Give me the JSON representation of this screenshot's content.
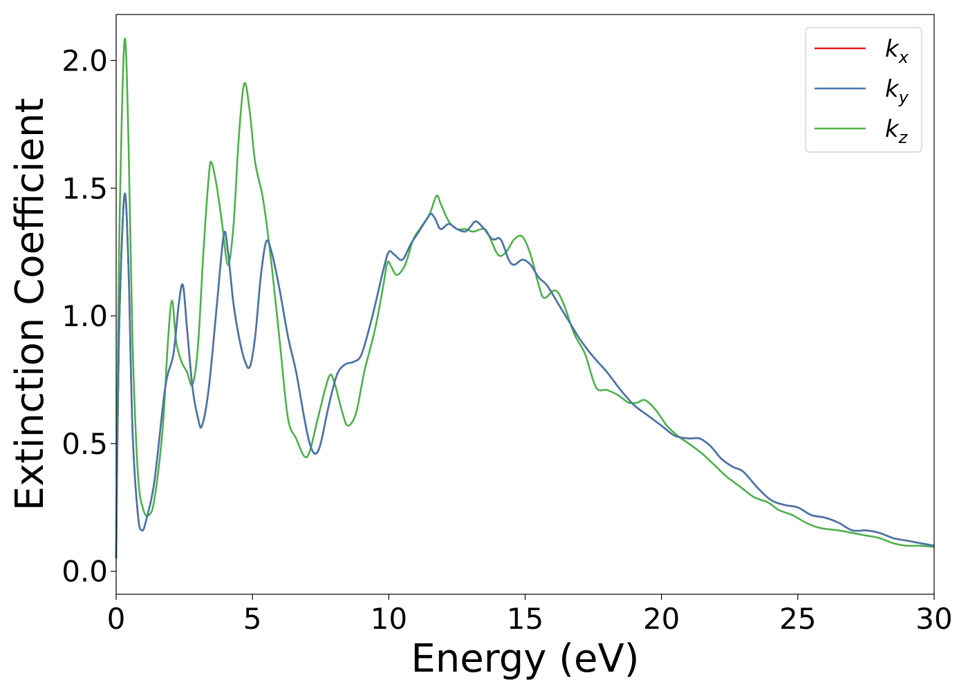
{
  "chart_data": {
    "type": "line",
    "xlabel": "Energy (eV)",
    "ylabel": "Extinction Coefficient",
    "xlim": [
      0,
      30
    ],
    "ylim": [
      -0.09,
      2.18
    ],
    "xticks": [
      0,
      5,
      10,
      15,
      20,
      25,
      30
    ],
    "xtick_labels": [
      "0",
      "5",
      "10",
      "15",
      "20",
      "25",
      "30"
    ],
    "yticks": [
      0.0,
      0.5,
      1.0,
      1.5,
      2.0
    ],
    "ytick_labels": [
      "0.0",
      "0.5",
      "1.0",
      "1.5",
      "2.0"
    ],
    "grid": false,
    "legend_position": "top-right",
    "series": [
      {
        "name": "k_x",
        "legend_base": "k",
        "legend_sub": "x",
        "color": "#e41a1c",
        "points": [
          [
            0,
            0.05
          ],
          [
            0.1,
            0.9
          ],
          [
            0.3,
            1.47
          ],
          [
            0.45,
            1.2
          ],
          [
            0.6,
            0.55
          ],
          [
            0.8,
            0.22
          ],
          [
            0.95,
            0.16
          ],
          [
            1.1,
            0.2
          ],
          [
            1.4,
            0.35
          ],
          [
            1.8,
            0.72
          ],
          [
            2.1,
            0.85
          ],
          [
            2.3,
            1.05
          ],
          [
            2.45,
            1.12
          ],
          [
            2.6,
            0.95
          ],
          [
            2.8,
            0.72
          ],
          [
            3.0,
            0.6
          ],
          [
            3.15,
            0.57
          ],
          [
            3.4,
            0.72
          ],
          [
            3.7,
            1.05
          ],
          [
            3.95,
            1.32
          ],
          [
            4.1,
            1.25
          ],
          [
            4.3,
            1.05
          ],
          [
            4.5,
            0.92
          ],
          [
            4.7,
            0.83
          ],
          [
            4.9,
            0.8
          ],
          [
            5.1,
            0.92
          ],
          [
            5.3,
            1.15
          ],
          [
            5.5,
            1.29
          ],
          [
            5.7,
            1.25
          ],
          [
            6.0,
            1.1
          ],
          [
            6.3,
            0.92
          ],
          [
            6.6,
            0.78
          ],
          [
            6.9,
            0.6
          ],
          [
            7.1,
            0.5
          ],
          [
            7.3,
            0.46
          ],
          [
            7.5,
            0.5
          ],
          [
            7.8,
            0.65
          ],
          [
            8.1,
            0.77
          ],
          [
            8.4,
            0.81
          ],
          [
            8.7,
            0.82
          ],
          [
            9.0,
            0.85
          ],
          [
            9.4,
            1.0
          ],
          [
            9.8,
            1.18
          ],
          [
            10.0,
            1.25
          ],
          [
            10.2,
            1.24
          ],
          [
            10.5,
            1.22
          ],
          [
            10.8,
            1.28
          ],
          [
            11.1,
            1.33
          ],
          [
            11.4,
            1.38
          ],
          [
            11.55,
            1.4
          ],
          [
            11.7,
            1.38
          ],
          [
            11.9,
            1.34
          ],
          [
            12.2,
            1.36
          ],
          [
            12.5,
            1.34
          ],
          [
            12.8,
            1.33
          ],
          [
            13.0,
            1.35
          ],
          [
            13.2,
            1.37
          ],
          [
            13.5,
            1.34
          ],
          [
            13.8,
            1.3
          ],
          [
            14.1,
            1.3
          ],
          [
            14.4,
            1.22
          ],
          [
            14.6,
            1.2
          ],
          [
            14.9,
            1.22
          ],
          [
            15.2,
            1.2
          ],
          [
            15.5,
            1.15
          ],
          [
            15.8,
            1.12
          ],
          [
            16.2,
            1.05
          ],
          [
            16.6,
            0.98
          ],
          [
            17.0,
            0.91
          ],
          [
            17.5,
            0.84
          ],
          [
            18.0,
            0.78
          ],
          [
            18.5,
            0.71
          ],
          [
            19.0,
            0.65
          ],
          [
            19.5,
            0.61
          ],
          [
            20.0,
            0.57
          ],
          [
            20.5,
            0.53
          ],
          [
            21.0,
            0.52
          ],
          [
            21.4,
            0.52
          ],
          [
            21.8,
            0.49
          ],
          [
            22.2,
            0.44
          ],
          [
            22.6,
            0.41
          ],
          [
            23.0,
            0.39
          ],
          [
            23.5,
            0.33
          ],
          [
            24.0,
            0.28
          ],
          [
            24.5,
            0.26
          ],
          [
            25.0,
            0.25
          ],
          [
            25.5,
            0.22
          ],
          [
            26.0,
            0.21
          ],
          [
            26.5,
            0.19
          ],
          [
            27.0,
            0.16
          ],
          [
            27.5,
            0.16
          ],
          [
            28.0,
            0.15
          ],
          [
            28.5,
            0.13
          ],
          [
            29.0,
            0.12
          ],
          [
            29.5,
            0.11
          ],
          [
            30.0,
            0.1
          ]
        ]
      },
      {
        "name": "k_y",
        "legend_base": "k",
        "legend_sub": "y",
        "color": "#4477aa",
        "points": [
          [
            0,
            0.05
          ],
          [
            0.1,
            0.9
          ],
          [
            0.3,
            1.47
          ],
          [
            0.45,
            1.2
          ],
          [
            0.6,
            0.55
          ],
          [
            0.8,
            0.22
          ],
          [
            0.95,
            0.16
          ],
          [
            1.1,
            0.2
          ],
          [
            1.4,
            0.35
          ],
          [
            1.8,
            0.72
          ],
          [
            2.1,
            0.85
          ],
          [
            2.3,
            1.05
          ],
          [
            2.45,
            1.12
          ],
          [
            2.6,
            0.95
          ],
          [
            2.8,
            0.72
          ],
          [
            3.0,
            0.6
          ],
          [
            3.15,
            0.57
          ],
          [
            3.4,
            0.72
          ],
          [
            3.7,
            1.05
          ],
          [
            3.95,
            1.32
          ],
          [
            4.1,
            1.25
          ],
          [
            4.3,
            1.05
          ],
          [
            4.5,
            0.92
          ],
          [
            4.7,
            0.83
          ],
          [
            4.9,
            0.8
          ],
          [
            5.1,
            0.92
          ],
          [
            5.3,
            1.15
          ],
          [
            5.5,
            1.29
          ],
          [
            5.7,
            1.25
          ],
          [
            6.0,
            1.1
          ],
          [
            6.3,
            0.92
          ],
          [
            6.6,
            0.78
          ],
          [
            6.9,
            0.6
          ],
          [
            7.1,
            0.5
          ],
          [
            7.3,
            0.46
          ],
          [
            7.5,
            0.5
          ],
          [
            7.8,
            0.65
          ],
          [
            8.1,
            0.77
          ],
          [
            8.4,
            0.81
          ],
          [
            8.7,
            0.82
          ],
          [
            9.0,
            0.85
          ],
          [
            9.4,
            1.0
          ],
          [
            9.8,
            1.18
          ],
          [
            10.0,
            1.25
          ],
          [
            10.2,
            1.24
          ],
          [
            10.5,
            1.22
          ],
          [
            10.8,
            1.28
          ],
          [
            11.1,
            1.33
          ],
          [
            11.4,
            1.38
          ],
          [
            11.55,
            1.4
          ],
          [
            11.7,
            1.38
          ],
          [
            11.9,
            1.34
          ],
          [
            12.2,
            1.36
          ],
          [
            12.5,
            1.34
          ],
          [
            12.8,
            1.33
          ],
          [
            13.0,
            1.35
          ],
          [
            13.2,
            1.37
          ],
          [
            13.5,
            1.34
          ],
          [
            13.8,
            1.3
          ],
          [
            14.1,
            1.3
          ],
          [
            14.4,
            1.22
          ],
          [
            14.6,
            1.2
          ],
          [
            14.9,
            1.22
          ],
          [
            15.2,
            1.2
          ],
          [
            15.5,
            1.15
          ],
          [
            15.8,
            1.12
          ],
          [
            16.2,
            1.05
          ],
          [
            16.6,
            0.98
          ],
          [
            17.0,
            0.91
          ],
          [
            17.5,
            0.84
          ],
          [
            18.0,
            0.78
          ],
          [
            18.5,
            0.71
          ],
          [
            19.0,
            0.65
          ],
          [
            19.5,
            0.61
          ],
          [
            20.0,
            0.57
          ],
          [
            20.5,
            0.53
          ],
          [
            21.0,
            0.52
          ],
          [
            21.4,
            0.52
          ],
          [
            21.8,
            0.49
          ],
          [
            22.2,
            0.44
          ],
          [
            22.6,
            0.41
          ],
          [
            23.0,
            0.39
          ],
          [
            23.5,
            0.33
          ],
          [
            24.0,
            0.28
          ],
          [
            24.5,
            0.26
          ],
          [
            25.0,
            0.25
          ],
          [
            25.5,
            0.22
          ],
          [
            26.0,
            0.21
          ],
          [
            26.5,
            0.19
          ],
          [
            27.0,
            0.16
          ],
          [
            27.5,
            0.16
          ],
          [
            28.0,
            0.15
          ],
          [
            28.5,
            0.13
          ],
          [
            29.0,
            0.12
          ],
          [
            29.5,
            0.11
          ],
          [
            30.0,
            0.1
          ]
        ]
      },
      {
        "name": "k_z",
        "legend_base": "k",
        "legend_sub": "z",
        "color": "#4daf4a",
        "points": [
          [
            0,
            0.05
          ],
          [
            0.1,
            1.2
          ],
          [
            0.3,
            2.07
          ],
          [
            0.45,
            1.7
          ],
          [
            0.6,
            0.9
          ],
          [
            0.8,
            0.38
          ],
          [
            1.0,
            0.24
          ],
          [
            1.2,
            0.22
          ],
          [
            1.4,
            0.28
          ],
          [
            1.7,
            0.55
          ],
          [
            1.9,
            0.9
          ],
          [
            2.05,
            1.06
          ],
          [
            2.2,
            0.9
          ],
          [
            2.4,
            0.82
          ],
          [
            2.6,
            0.78
          ],
          [
            2.8,
            0.73
          ],
          [
            3.0,
            0.88
          ],
          [
            3.2,
            1.25
          ],
          [
            3.4,
            1.55
          ],
          [
            3.5,
            1.6
          ],
          [
            3.7,
            1.5
          ],
          [
            3.9,
            1.35
          ],
          [
            4.1,
            1.2
          ],
          [
            4.3,
            1.35
          ],
          [
            4.5,
            1.7
          ],
          [
            4.7,
            1.91
          ],
          [
            4.9,
            1.8
          ],
          [
            5.1,
            1.6
          ],
          [
            5.4,
            1.45
          ],
          [
            5.7,
            1.2
          ],
          [
            6.0,
            0.9
          ],
          [
            6.3,
            0.6
          ],
          [
            6.6,
            0.52
          ],
          [
            6.9,
            0.45
          ],
          [
            7.1,
            0.47
          ],
          [
            7.4,
            0.6
          ],
          [
            7.8,
            0.76
          ],
          [
            8.0,
            0.74
          ],
          [
            8.3,
            0.62
          ],
          [
            8.5,
            0.57
          ],
          [
            8.8,
            0.62
          ],
          [
            9.1,
            0.78
          ],
          [
            9.5,
            0.95
          ],
          [
            9.8,
            1.12
          ],
          [
            9.95,
            1.21
          ],
          [
            10.1,
            1.19
          ],
          [
            10.3,
            1.16
          ],
          [
            10.6,
            1.2
          ],
          [
            10.9,
            1.3
          ],
          [
            11.2,
            1.35
          ],
          [
            11.5,
            1.4
          ],
          [
            11.75,
            1.47
          ],
          [
            11.9,
            1.44
          ],
          [
            12.2,
            1.37
          ],
          [
            12.5,
            1.34
          ],
          [
            12.8,
            1.34
          ],
          [
            13.1,
            1.33
          ],
          [
            13.4,
            1.34
          ],
          [
            13.6,
            1.33
          ],
          [
            14.0,
            1.24
          ],
          [
            14.3,
            1.25
          ],
          [
            14.6,
            1.3
          ],
          [
            14.9,
            1.31
          ],
          [
            15.2,
            1.24
          ],
          [
            15.5,
            1.12
          ],
          [
            15.7,
            1.07
          ],
          [
            16.1,
            1.1
          ],
          [
            16.4,
            1.05
          ],
          [
            16.8,
            0.93
          ],
          [
            17.2,
            0.85
          ],
          [
            17.6,
            0.72
          ],
          [
            18.0,
            0.71
          ],
          [
            18.4,
            0.69
          ],
          [
            18.8,
            0.66
          ],
          [
            19.1,
            0.66
          ],
          [
            19.4,
            0.67
          ],
          [
            19.8,
            0.63
          ],
          [
            20.2,
            0.57
          ],
          [
            20.6,
            0.53
          ],
          [
            21.0,
            0.5
          ],
          [
            21.5,
            0.46
          ],
          [
            22.0,
            0.41
          ],
          [
            22.4,
            0.37
          ],
          [
            22.9,
            0.33
          ],
          [
            23.4,
            0.29
          ],
          [
            23.9,
            0.27
          ],
          [
            24.3,
            0.24
          ],
          [
            24.8,
            0.22
          ],
          [
            25.3,
            0.19
          ],
          [
            25.8,
            0.17
          ],
          [
            26.5,
            0.16
          ],
          [
            27.0,
            0.15
          ],
          [
            27.5,
            0.14
          ],
          [
            28.0,
            0.13
          ],
          [
            28.5,
            0.11
          ],
          [
            29.0,
            0.1
          ],
          [
            29.5,
            0.1
          ],
          [
            30.0,
            0.095
          ]
        ]
      }
    ]
  }
}
